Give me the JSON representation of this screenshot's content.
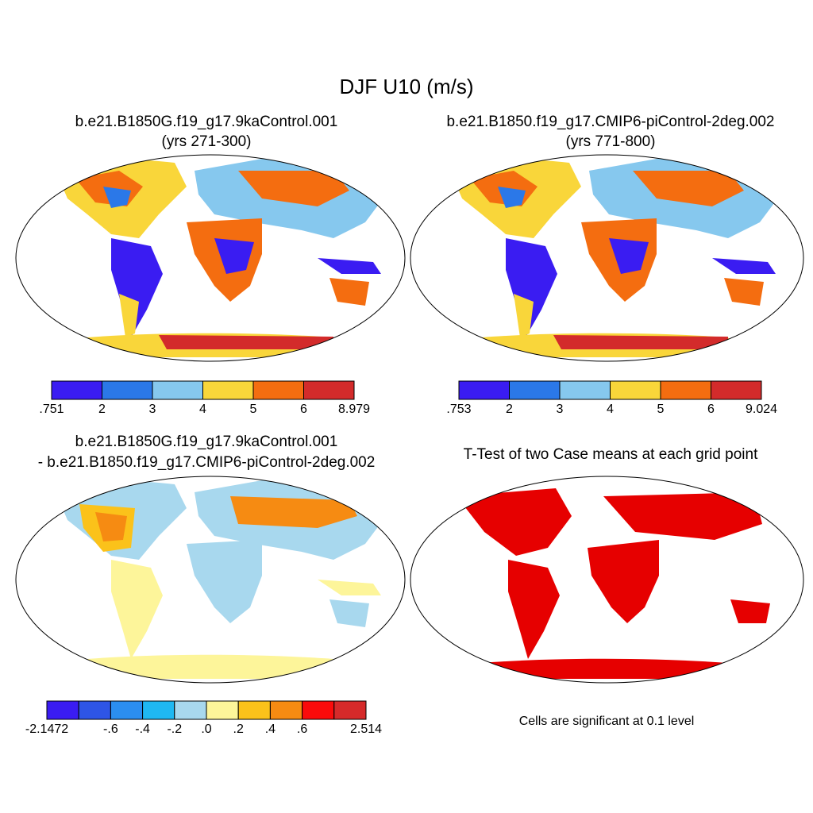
{
  "figure": {
    "title": "DJF U10 (m/s)"
  },
  "panels": [
    {
      "id": "case1",
      "title_line1": "b.e21.B1850G.f19_g17.9kaControl.001",
      "title_line2": "(yrs 271-300)",
      "colorbar": {
        "colors": [
          "#3a1cf2",
          "#2b78e8",
          "#86c8ee",
          "#f9d63a",
          "#f46d10",
          "#d32b2b"
        ],
        "tick_labels": [
          ".751",
          "2",
          "3",
          "4",
          "5",
          "6",
          "8.979"
        ]
      }
    },
    {
      "id": "case2",
      "title_line1": "b.e21.B1850.f19_g17.CMIP6-piControl-2deg.002",
      "title_line2": "(yrs 771-800)",
      "colorbar": {
        "colors": [
          "#3a1cf2",
          "#2b78e8",
          "#86c8ee",
          "#f9d63a",
          "#f46d10",
          "#d32b2b"
        ],
        "tick_labels": [
          ".753",
          "2",
          "3",
          "4",
          "5",
          "6",
          "9.024"
        ]
      }
    },
    {
      "id": "difference",
      "title_line1": "b.e21.B1850G.f19_g17.9kaControl.001",
      "title_line2": "- b.e21.B1850.f19_g17.CMIP6-piControl-2deg.002",
      "colorbar": {
        "colors": [
          "#3a1cf2",
          "#2e55e6",
          "#2b8ef0",
          "#1fb8f2",
          "#a8d8ee",
          "#fdf59a",
          "#fbc21a",
          "#f68b12",
          "#fb0b0b",
          "#d62a2a"
        ],
        "tick_labels": [
          "-2.1472",
          "-.6",
          "-.4",
          "-.2",
          ".0",
          ".2",
          ".4",
          ".6",
          "2.514"
        ]
      }
    },
    {
      "id": "ttest",
      "title_line1": "T-Test of two Case means at each grid point",
      "note": "Cells are significant at 0.1 level",
      "fill_color": "#e60000"
    }
  ]
}
